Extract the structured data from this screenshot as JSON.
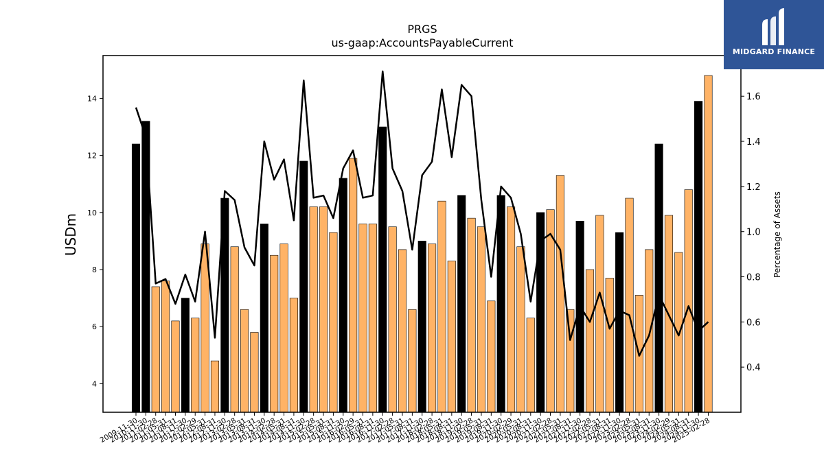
{
  "chart_data": {
    "type": "bar+line",
    "title": "PRGS",
    "subtitle": "us-gaap:AccountsPayableCurrent",
    "ylabel": "USDm",
    "y2label": "Percentage of Assets",
    "ylim": [
      3.0,
      15.5
    ],
    "y2lim": [
      0.2,
      1.78
    ],
    "yticks": [
      4,
      6,
      8,
      10,
      12,
      14
    ],
    "y2ticks": [
      0.4,
      0.6,
      0.8,
      1.0,
      1.2,
      1.4,
      1.6
    ],
    "categories": [
      "2009-11-30",
      "2010-11-30",
      "2011-02-28",
      "2011-05-31",
      "2011-08-31",
      "2011-11-30",
      "2012-02-29",
      "2012-05-31",
      "2012-08-31",
      "2012-11-30",
      "2013-02-28",
      "2013-05-31",
      "2013-08-31",
      "2013-11-30",
      "2014-02-28",
      "2014-05-31",
      "2014-08-31",
      "2014-11-30",
      "2015-02-28",
      "2015-05-31",
      "2015-08-31",
      "2015-11-30",
      "2016-02-29",
      "2016-05-31",
      "2016-08-31",
      "2016-11-30",
      "2017-02-28",
      "2017-05-31",
      "2017-08-31",
      "2017-11-30",
      "2018-02-28",
      "2018-05-31",
      "2018-08-31",
      "2018-11-30",
      "2019-02-28",
      "2019-05-31",
      "2019-08-31",
      "2019-11-30",
      "2020-02-29",
      "2020-05-31",
      "2020-08-31",
      "2020-11-30",
      "2021-02-28",
      "2021-05-31",
      "2021-08-31",
      "2021-11-30",
      "2022-02-28",
      "2022-05-31",
      "2022-08-31",
      "2022-11-30",
      "2023-02-28",
      "2023-05-31",
      "2023-08-31",
      "2023-11-30",
      "2024-02-29",
      "2024-05-31",
      "2024-08-31",
      "2024-11-30",
      "2025-02-28"
    ],
    "annual_flags": [
      1,
      1,
      0,
      0,
      0,
      1,
      0,
      0,
      0,
      1,
      0,
      0,
      0,
      1,
      0,
      0,
      0,
      1,
      0,
      0,
      0,
      1,
      0,
      0,
      0,
      1,
      0,
      0,
      0,
      1,
      0,
      0,
      0,
      1,
      0,
      0,
      0,
      1,
      0,
      0,
      0,
      1,
      0,
      0,
      0,
      1,
      0,
      0,
      0,
      1,
      0,
      0,
      0,
      1,
      0,
      0,
      0,
      1,
      0
    ],
    "series": [
      {
        "kind": "bar",
        "values": [
          12.4,
          13.2,
          7.4,
          7.6,
          6.2,
          7.0,
          6.3,
          8.9,
          4.8,
          10.5,
          8.8,
          6.6,
          5.8,
          9.6,
          8.5,
          8.9,
          7.0,
          11.8,
          10.2,
          10.2,
          9.3,
          11.2,
          11.9,
          9.6,
          9.6,
          13.0,
          9.5,
          8.7,
          6.6,
          9.0,
          8.9,
          10.4,
          8.3,
          10.6,
          9.8,
          9.5,
          6.9,
          10.6,
          10.2,
          8.8,
          6.3,
          10.0,
          10.1,
          11.3,
          6.6,
          9.7,
          8.0,
          9.9,
          7.7,
          9.3,
          10.5,
          7.1,
          8.7,
          12.4,
          9.9,
          8.6,
          10.8,
          13.9,
          14.8
        ]
      },
      {
        "kind": "line",
        "axis": "right",
        "values": [
          1.55,
          1.42,
          0.77,
          0.79,
          0.68,
          0.81,
          0.69,
          1.0,
          0.53,
          1.18,
          1.14,
          0.93,
          0.85,
          1.4,
          1.23,
          1.32,
          1.05,
          1.67,
          1.15,
          1.16,
          1.06,
          1.28,
          1.36,
          1.15,
          1.16,
          1.71,
          1.28,
          1.18,
          0.92,
          1.25,
          1.31,
          1.63,
          1.33,
          1.65,
          1.6,
          1.14,
          0.8,
          1.2,
          1.15,
          0.99,
          0.69,
          0.96,
          0.99,
          0.92,
          0.52,
          0.67,
          0.6,
          0.73,
          0.57,
          0.65,
          0.63,
          0.45,
          0.54,
          0.72,
          0.63,
          0.54,
          0.67,
          0.56,
          0.6
        ]
      }
    ],
    "colors": {
      "annual": "#000000",
      "quarterly": "#ffb366",
      "line": "#000000"
    }
  },
  "logo": {
    "text": "MIDGARD FINANCE"
  }
}
